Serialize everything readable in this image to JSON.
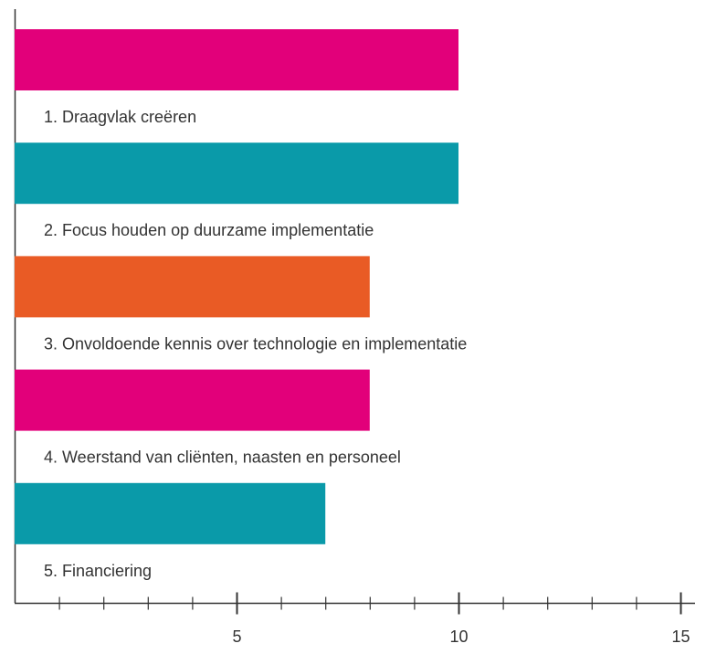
{
  "chart_data": {
    "type": "bar",
    "orientation": "horizontal",
    "categories": [
      "1. Draagvlak creëren",
      "2. Focus houden op duurzame implementatie",
      "3. Onvoldoende kennis over technologie en implementatie",
      "4. Weerstand van cliënten, naasten en personeel",
      "5. Financiering"
    ],
    "values": [
      10,
      10,
      8,
      8,
      7
    ],
    "colors": [
      "#e2007a",
      "#0a9aa9",
      "#e95b25",
      "#e2007a",
      "#0a9aa9"
    ],
    "xlim": [
      0,
      15
    ],
    "major_ticks": [
      {
        "value": 5,
        "label": "5"
      },
      {
        "value": 10,
        "label": "10"
      },
      {
        "value": 15,
        "label": "15"
      }
    ],
    "minor_tick_step": 1,
    "title": "",
    "xlabel": "",
    "ylabel": "",
    "grid": false,
    "legend": "none"
  }
}
